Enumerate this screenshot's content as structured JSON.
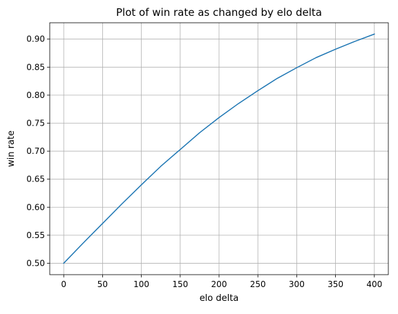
{
  "chart_data": {
    "type": "line",
    "title": "Plot of win rate as changed by elo delta",
    "xlabel": "elo delta",
    "ylabel": "win rate",
    "xlim": [
      -18,
      418
    ],
    "ylim": [
      0.4796,
      0.9292
    ],
    "grid": true,
    "xticks": [
      0,
      50,
      100,
      150,
      200,
      250,
      300,
      350,
      400
    ],
    "xtick_labels": [
      "0",
      "50",
      "100",
      "150",
      "200",
      "250",
      "300",
      "350",
      "400"
    ],
    "yticks": [
      0.5,
      0.55,
      0.6,
      0.65,
      0.7,
      0.75,
      0.8,
      0.85,
      0.9
    ],
    "ytick_labels": [
      "0.50",
      "0.55",
      "0.60",
      "0.65",
      "0.70",
      "0.75",
      "0.80",
      "0.85",
      "0.90"
    ],
    "series": [
      {
        "color": "#1f77b4",
        "x": [
          0,
          25,
          50,
          75,
          100,
          125,
          150,
          175,
          200,
          225,
          250,
          275,
          300,
          325,
          350,
          375,
          400
        ],
        "y": [
          0.5,
          0.536,
          0.571,
          0.606,
          0.64,
          0.673,
          0.703,
          0.733,
          0.76,
          0.785,
          0.808,
          0.83,
          0.849,
          0.867,
          0.882,
          0.896,
          0.909
        ]
      }
    ]
  }
}
